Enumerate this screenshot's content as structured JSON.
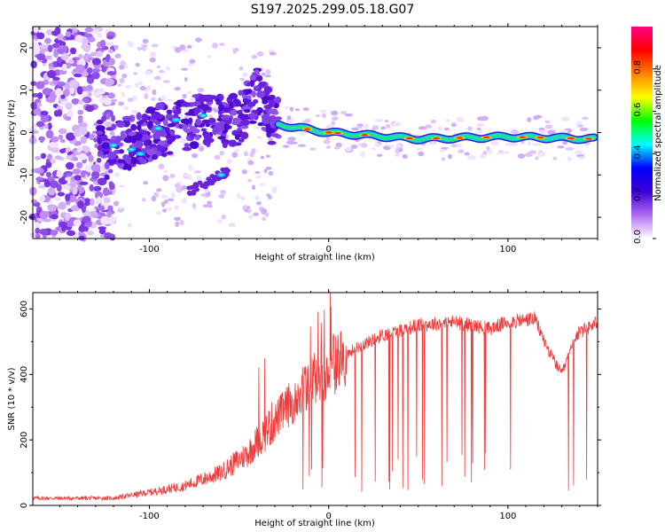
{
  "title": "S197.2025.299.05.18.G07",
  "chart_data": [
    {
      "type": "heatmap",
      "title": "S197.2025.299.05.18.G07",
      "xlabel": "Height of straight line (km)",
      "ylabel": "Frequency (Hz)",
      "xlim": [
        -165,
        150
      ],
      "ylim": [
        -25,
        25
      ],
      "xticks": [
        -100,
        0,
        100
      ],
      "yticks": [
        -20,
        -10,
        0,
        10,
        20
      ],
      "colorbar": {
        "label": "Normalized spectral amplitude",
        "range": [
          0,
          1
        ],
        "ticks": [
          "0.0",
          "0.2",
          "0.4",
          "0.6",
          "0.8"
        ],
        "colors": [
          "#ffffff",
          "#b06cf2",
          "#3b00d6",
          "#0000ff",
          "#00ffff",
          "#00ff00",
          "#ffff00",
          "#ff8000",
          "#ff0000",
          "#ff0088"
        ]
      },
      "ridge": [
        {
          "x": -125,
          "f": -5
        },
        {
          "x": -110,
          "f": -2
        },
        {
          "x": -90,
          "f": 1
        },
        {
          "x": -70,
          "f": 3
        },
        {
          "x": -50,
          "f": 3
        },
        {
          "x": -40,
          "f": 9
        },
        {
          "x": -30,
          "f": 2
        },
        {
          "x": 0,
          "f": 0
        },
        {
          "x": 50,
          "f": -1.5
        },
        {
          "x": 100,
          "f": -1
        },
        {
          "x": 148,
          "f": -1.5
        }
      ]
    },
    {
      "type": "line",
      "xlabel": "Height of straight line (km)",
      "ylabel": "SNR (10 * v/v)",
      "xlim": [
        -165,
        150
      ],
      "ylim": [
        0,
        650
      ],
      "xticks": [
        -100,
        0,
        100
      ],
      "yticks": [
        0,
        200,
        400,
        600
      ],
      "color": "#ef3b3b",
      "envelope": [
        {
          "x": -165,
          "y": 22
        },
        {
          "x": -120,
          "y": 22
        },
        {
          "x": -100,
          "y": 40
        },
        {
          "x": -80,
          "y": 60
        },
        {
          "x": -60,
          "y": 100
        },
        {
          "x": -45,
          "y": 160
        },
        {
          "x": -30,
          "y": 260
        },
        {
          "x": -15,
          "y": 350
        },
        {
          "x": 0,
          "y": 420
        },
        {
          "x": 15,
          "y": 480
        },
        {
          "x": 30,
          "y": 520
        },
        {
          "x": 50,
          "y": 550
        },
        {
          "x": 70,
          "y": 560
        },
        {
          "x": 90,
          "y": 540
        },
        {
          "x": 100,
          "y": 560
        },
        {
          "x": 115,
          "y": 570
        },
        {
          "x": 122,
          "y": 480
        },
        {
          "x": 130,
          "y": 400
        },
        {
          "x": 138,
          "y": 520
        },
        {
          "x": 150,
          "y": 560
        }
      ]
    }
  ]
}
